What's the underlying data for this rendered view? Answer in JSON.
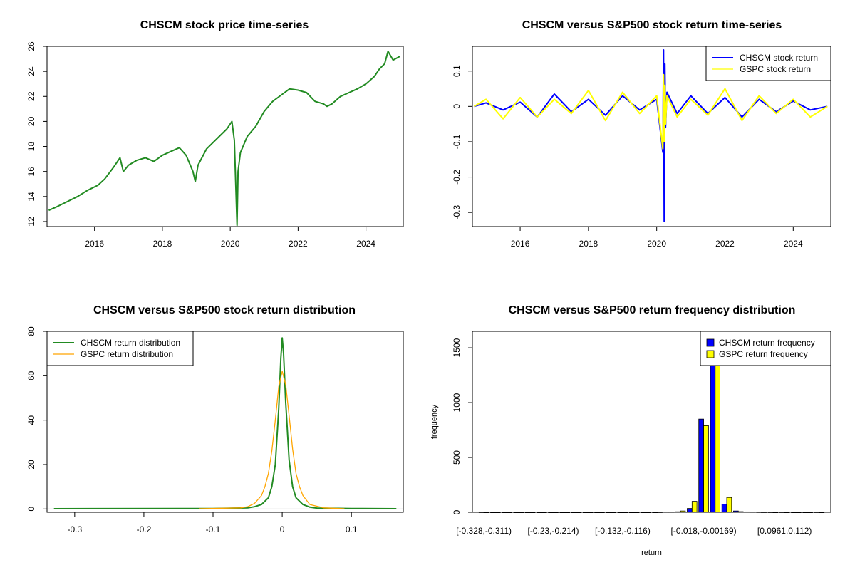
{
  "chart_data": [
    {
      "type": "line",
      "title": "CHSCM stock price time-series",
      "xlabel": "",
      "ylabel": "",
      "xlim": [
        2014.6,
        2025.1
      ],
      "ylim": [
        11.6,
        26.0
      ],
      "x_ticks": [
        2016,
        2018,
        2020,
        2022,
        2024
      ],
      "y_ticks": [
        12,
        14,
        16,
        18,
        20,
        22,
        24,
        26
      ],
      "series": [
        {
          "color": "#228B22",
          "x": [
            2014.65,
            2014.9,
            2015.2,
            2015.5,
            2015.8,
            2016.1,
            2016.3,
            2016.55,
            2016.75,
            2016.85,
            2017.0,
            2017.25,
            2017.5,
            2017.75,
            2018.0,
            2018.25,
            2018.5,
            2018.7,
            2018.9,
            2018.97,
            2019.05,
            2019.3,
            2019.6,
            2019.9,
            2020.05,
            2020.12,
            2020.2,
            2020.23,
            2020.3,
            2020.5,
            2020.75,
            2021.0,
            2021.25,
            2021.5,
            2021.75,
            2022.0,
            2022.25,
            2022.5,
            2022.75,
            2022.85,
            2023.0,
            2023.25,
            2023.5,
            2023.75,
            2024.0,
            2024.25,
            2024.4,
            2024.55,
            2024.65,
            2024.8,
            2025.0
          ],
          "y": [
            12.9,
            13.2,
            13.6,
            14.0,
            14.5,
            14.9,
            15.4,
            16.3,
            17.1,
            16.0,
            16.5,
            16.9,
            17.1,
            16.8,
            17.3,
            17.6,
            17.9,
            17.3,
            16.0,
            15.2,
            16.5,
            17.8,
            18.6,
            19.4,
            20.0,
            18.5,
            11.7,
            16.0,
            17.5,
            18.8,
            19.6,
            20.8,
            21.6,
            22.1,
            22.6,
            22.5,
            22.3,
            21.6,
            21.4,
            21.2,
            21.4,
            22.0,
            22.3,
            22.6,
            23.0,
            23.6,
            24.2,
            24.6,
            25.6,
            24.9,
            25.2
          ]
        }
      ]
    },
    {
      "type": "line",
      "title": "CHSCM versus S&P500 stock return time-series",
      "xlabel": "",
      "ylabel": "",
      "xlim": [
        2014.6,
        2025.1
      ],
      "ylim": [
        -0.34,
        0.17
      ],
      "x_ticks": [
        2016,
        2018,
        2020,
        2022,
        2024
      ],
      "y_ticks": [
        -0.3,
        -0.2,
        -0.1,
        0.0,
        0.1
      ],
      "legend": "top-right",
      "series": [
        {
          "name": "CHSCM stock return",
          "color": "#0000FF",
          "x": [
            2014.65,
            2015.0,
            2015.5,
            2016.0,
            2016.5,
            2017.0,
            2017.5,
            2018.0,
            2018.5,
            2019.0,
            2019.5,
            2020.0,
            2020.18,
            2020.2,
            2020.22,
            2020.24,
            2020.26,
            2020.3,
            2020.6,
            2021.0,
            2021.5,
            2022.0,
            2022.5,
            2023.0,
            2023.5,
            2024.0,
            2024.5,
            2025.0
          ],
          "y": [
            0.0,
            0.01,
            -0.01,
            0.012,
            -0.03,
            0.035,
            -0.015,
            0.02,
            -0.025,
            0.03,
            -0.01,
            0.02,
            -0.13,
            0.16,
            -0.325,
            0.12,
            -0.06,
            0.04,
            -0.02,
            0.03,
            -0.02,
            0.025,
            -0.03,
            0.02,
            -0.015,
            0.015,
            -0.01,
            0.0
          ]
        },
        {
          "name": "GSPC stock return",
          "color": "#FFFF00",
          "x": [
            2014.65,
            2015.0,
            2015.5,
            2016.0,
            2016.5,
            2017.0,
            2017.5,
            2018.0,
            2018.5,
            2019.0,
            2019.5,
            2020.0,
            2020.18,
            2020.2,
            2020.22,
            2020.24,
            2020.26,
            2020.3,
            2020.6,
            2021.0,
            2021.5,
            2022.0,
            2022.5,
            2023.0,
            2023.5,
            2024.0,
            2024.5,
            2025.0
          ],
          "y": [
            0.0,
            0.02,
            -0.035,
            0.025,
            -0.03,
            0.02,
            -0.02,
            0.045,
            -0.04,
            0.04,
            -0.02,
            0.03,
            -0.12,
            0.09,
            -0.1,
            0.06,
            -0.05,
            0.03,
            -0.03,
            0.02,
            -0.025,
            0.05,
            -0.04,
            0.03,
            -0.02,
            0.02,
            -0.03,
            0.0
          ]
        }
      ]
    },
    {
      "type": "line",
      "title": "CHSCM versus S&P500 stock return distribution",
      "xlabel": "",
      "ylabel": "",
      "xlim": [
        -0.34,
        0.175
      ],
      "ylim": [
        -1.5,
        80
      ],
      "x_ticks": [
        -0.3,
        -0.2,
        -0.1,
        0.0,
        0.1
      ],
      "y_ticks": [
        0,
        20,
        40,
        60,
        80
      ],
      "legend": "top-left",
      "series": [
        {
          "name": "CHSCM return distribution",
          "color": "#228B22",
          "x": [
            -0.33,
            -0.1,
            -0.05,
            -0.04,
            -0.03,
            -0.02,
            -0.015,
            -0.01,
            -0.005,
            -0.002,
            0.0,
            0.002,
            0.005,
            0.01,
            0.015,
            0.02,
            0.03,
            0.04,
            0.05,
            0.1,
            0.165
          ],
          "y": [
            0.1,
            0.2,
            0.5,
            1.0,
            2.0,
            5.0,
            10.0,
            20.0,
            45.0,
            68.0,
            77.0,
            70.0,
            48.0,
            22.0,
            10.0,
            5.0,
            2.0,
            0.8,
            0.4,
            0.2,
            0.1
          ]
        },
        {
          "name": "GSPC return distribution",
          "color": "#FFA500",
          "x": [
            -0.12,
            -0.06,
            -0.05,
            -0.04,
            -0.03,
            -0.025,
            -0.02,
            -0.015,
            -0.01,
            -0.005,
            0.0,
            0.005,
            0.01,
            0.015,
            0.02,
            0.025,
            0.03,
            0.04,
            0.06,
            0.09
          ],
          "y": [
            0.1,
            0.5,
            1.0,
            2.5,
            6.0,
            10.0,
            16.0,
            26.0,
            40.0,
            55.0,
            62.0,
            56.0,
            42.0,
            27.0,
            16.0,
            10.0,
            6.0,
            2.0,
            0.5,
            0.1
          ]
        }
      ]
    },
    {
      "type": "bar",
      "title": "CHSCM versus S&P500 return frequency distribution",
      "xlabel": "return",
      "ylabel": "frequency",
      "ylim": [
        0,
        1650
      ],
      "y_ticks": [
        0,
        500,
        1000,
        1500
      ],
      "legend": "top-right",
      "tick_labels": [
        "[-0.328,-0.311)",
        "[-0.23,-0.214)",
        "[-0.132,-0.116)",
        "[-0.018,-0.00169)",
        "[0.0961,0.112)"
      ],
      "tick_label_bins": [
        0,
        6,
        12,
        19,
        26
      ],
      "bin_count": 30,
      "series": [
        {
          "name": "CHSCM return frequency",
          "color": "#0000FF",
          "values": [
            1,
            0,
            0,
            0,
            0,
            0,
            0,
            0,
            0,
            0,
            0,
            0,
            0,
            0,
            0,
            0,
            3,
            5,
            35,
            850,
            1650,
            75,
            12,
            4,
            2,
            1,
            1,
            0,
            0,
            1
          ]
        },
        {
          "name": "GSPC return frequency",
          "color": "#FFFF00",
          "values": [
            0,
            0,
            0,
            0,
            0,
            0,
            0,
            0,
            0,
            0,
            0,
            0,
            0,
            0,
            0,
            1,
            3,
            12,
            100,
            790,
            1650,
            135,
            6,
            3,
            1,
            0,
            0,
            0,
            0,
            0
          ]
        }
      ]
    }
  ]
}
